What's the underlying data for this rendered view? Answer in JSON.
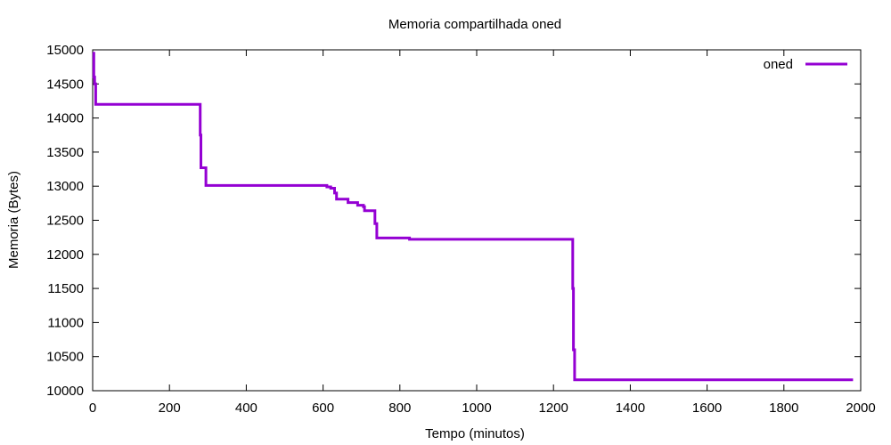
{
  "chart_data": {
    "type": "line",
    "title": "Memoria compartilhada oned",
    "xlabel": "Tempo (minutos)",
    "ylabel": "Memoria (Bytes)",
    "xlim": [
      0,
      2000
    ],
    "ylim": [
      10000,
      15000
    ],
    "xticks": [
      0,
      200,
      400,
      600,
      800,
      1000,
      1200,
      1400,
      1600,
      1800,
      2000
    ],
    "yticks": [
      10000,
      10500,
      11000,
      11500,
      12000,
      12500,
      13000,
      13500,
      14000,
      14500,
      15000
    ],
    "grid": false,
    "legend": {
      "position": "top-right",
      "entries": [
        "oned"
      ]
    },
    "series": [
      {
        "name": "oned",
        "color": "#9400d3",
        "step": true,
        "x": [
          0,
          3,
          5,
          8,
          280,
          282,
          295,
          610,
          620,
          630,
          635,
          665,
          690,
          705,
          708,
          735,
          740,
          825,
          1250,
          1252,
          1255,
          1980
        ],
        "y": [
          14950,
          14600,
          14500,
          14200,
          13750,
          13270,
          13010,
          12990,
          12970,
          12900,
          12810,
          12760,
          12720,
          12700,
          12640,
          12450,
          12240,
          12220,
          11500,
          10600,
          10160,
          10160
        ]
      }
    ]
  }
}
